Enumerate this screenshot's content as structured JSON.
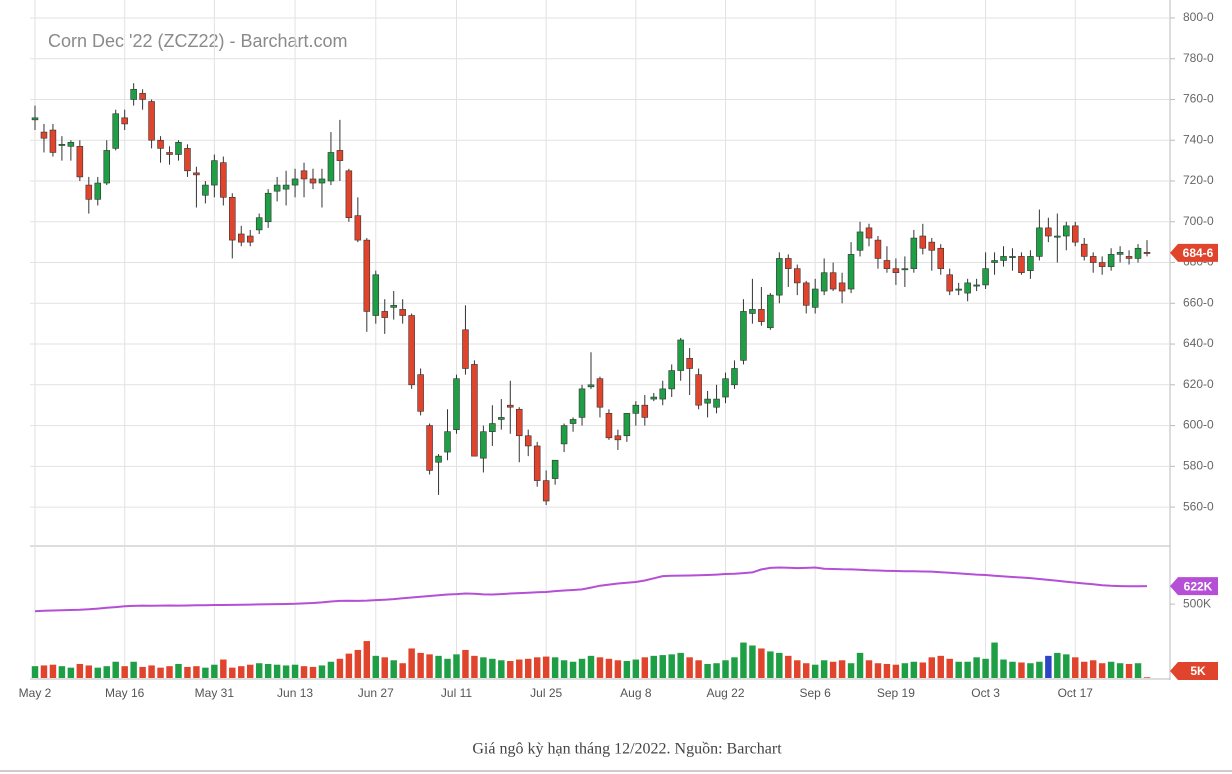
{
  "chart_data": {
    "type": "candlestick",
    "title": "Corn Dec '22 (ZCZ22) - Barchart.com",
    "up_color": "#1e9e45",
    "down_color": "#e0442c",
    "oi_color": "#b44fd6",
    "grid": true,
    "ylim": [
      541.4,
      803.9
    ],
    "yticks": [
      {
        "value": 560,
        "label": "560-0"
      },
      {
        "value": 580,
        "label": "580-0"
      },
      {
        "value": 600,
        "label": "600-0"
      },
      {
        "value": 620,
        "label": "620-0"
      },
      {
        "value": 640,
        "label": "640-0"
      },
      {
        "value": 660,
        "label": "660-0"
      },
      {
        "value": 680,
        "label": "680-0"
      },
      {
        "value": 700,
        "label": "700-0"
      },
      {
        "value": 720,
        "label": "720-0"
      },
      {
        "value": 740,
        "label": "740-0"
      },
      {
        "value": 760,
        "label": "760-0"
      },
      {
        "value": 780,
        "label": "780-0"
      },
      {
        "value": 800,
        "label": "800-0"
      }
    ],
    "xticks": [
      {
        "value": 0,
        "label": "May 2"
      },
      {
        "value": 10,
        "label": "May 16"
      },
      {
        "value": 20,
        "label": "May 31"
      },
      {
        "value": 29,
        "label": "Jun 13"
      },
      {
        "value": 38,
        "label": "Jun 27"
      },
      {
        "value": 47,
        "label": "Jul 11"
      },
      {
        "value": 57,
        "label": "Jul 25"
      },
      {
        "value": 67,
        "label": "Aug 8"
      },
      {
        "value": 77,
        "label": "Aug 22"
      },
      {
        "value": 87,
        "label": "Sep 6"
      },
      {
        "value": 96,
        "label": "Sep 19"
      },
      {
        "value": 106,
        "label": "Oct 3"
      },
      {
        "value": 116,
        "label": "Oct 17"
      }
    ],
    "open": [
      750,
      744,
      745,
      738,
      737,
      737,
      718,
      711,
      719,
      736,
      751,
      760,
      763,
      759,
      740,
      734,
      733,
      736,
      724,
      713,
      718,
      729,
      712,
      694,
      693,
      696,
      700,
      715,
      716,
      718,
      725,
      721,
      719,
      720,
      735,
      725,
      703,
      691,
      654,
      656,
      658,
      657,
      654,
      625,
      600,
      582,
      587,
      598,
      647,
      630,
      584,
      597,
      603,
      610,
      608,
      595,
      590,
      573,
      574,
      591,
      601,
      604,
      619,
      623,
      606,
      595,
      595,
      606,
      610,
      613,
      613,
      618,
      627,
      633,
      625,
      611,
      609,
      614,
      620,
      632,
      655,
      657,
      648,
      664,
      682,
      677,
      670,
      658,
      666,
      675,
      670,
      667,
      686,
      697,
      691,
      681,
      677,
      677,
      677,
      693,
      690,
      687,
      674,
      667,
      665,
      669,
      669,
      680,
      681,
      683,
      683,
      676,
      683,
      697,
      693,
      693,
      698,
      689,
      683,
      680,
      678,
      684,
      683,
      682,
      685
    ],
    "high": [
      757,
      748,
      748,
      742,
      740,
      740,
      722,
      722,
      740,
      755,
      755,
      768,
      765,
      760,
      742,
      737,
      740,
      738,
      727,
      720,
      733,
      732,
      714,
      698,
      696,
      704,
      716,
      722,
      725,
      726,
      729,
      726,
      726,
      744,
      750,
      726,
      712,
      692,
      676,
      662,
      666,
      662,
      655,
      628,
      601,
      586,
      608,
      625,
      659,
      632,
      600,
      610,
      613,
      622,
      609,
      598,
      592,
      578,
      582,
      601,
      604,
      620,
      636,
      624,
      608,
      598,
      606,
      612,
      615,
      616,
      622,
      630,
      643,
      638,
      628,
      617,
      620,
      626,
      632,
      662,
      672,
      668,
      665,
      685,
      684,
      679,
      671,
      672,
      682,
      680,
      675,
      690,
      700,
      699,
      693,
      688,
      682,
      683,
      696,
      699,
      692,
      689,
      677,
      670,
      672,
      672,
      685,
      685,
      688,
      687,
      685,
      686,
      706,
      702,
      704,
      700,
      700,
      692,
      685,
      683,
      687,
      688,
      686,
      689,
      691
    ],
    "low": [
      745,
      734,
      732,
      730,
      730,
      720,
      704,
      708,
      718,
      735,
      745,
      757,
      755,
      736,
      729,
      728,
      730,
      722,
      707,
      709,
      712,
      708,
      682,
      688,
      688,
      694,
      697,
      710,
      708,
      712,
      712,
      716,
      707,
      718,
      720,
      700,
      690,
      646,
      650,
      645,
      652,
      650,
      618,
      605,
      576,
      566,
      583,
      596,
      625,
      585,
      577,
      590,
      598,
      596,
      582,
      585,
      570,
      561,
      571,
      587,
      597,
      600,
      618,
      604,
      593,
      588,
      592,
      600,
      600,
      612,
      610,
      614,
      622,
      615,
      608,
      604,
      606,
      611,
      618,
      630,
      650,
      649,
      647,
      660,
      668,
      664,
      655,
      655,
      664,
      666,
      660,
      665,
      683,
      688,
      677,
      675,
      669,
      668,
      675,
      684,
      676,
      674,
      664,
      664,
      661,
      666,
      667,
      674,
      678,
      676,
      674,
      672,
      681,
      690,
      680,
      686,
      688,
      681,
      675,
      674,
      676,
      680,
      679,
      680,
      683
    ],
    "close": [
      751,
      741,
      734,
      738,
      739,
      722,
      711,
      719,
      735,
      753,
      748,
      765,
      760,
      740,
      736,
      733,
      739,
      725,
      723,
      718,
      730,
      712,
      691,
      690,
      690,
      702,
      714,
      718,
      718,
      721,
      721,
      719,
      721,
      734,
      730,
      702,
      691,
      656,
      674,
      653,
      659,
      654,
      620,
      607,
      578,
      585,
      597,
      623,
      628,
      585,
      597,
      601,
      604,
      609,
      595,
      590,
      573,
      563,
      583,
      600,
      603,
      618,
      620,
      609,
      594,
      593,
      606,
      610,
      604,
      614,
      618,
      627,
      642,
      628,
      610,
      613,
      613,
      623,
      628,
      656,
      657,
      651,
      664,
      682,
      677,
      670,
      659,
      667,
      675,
      667,
      666,
      684,
      695,
      692,
      682,
      677,
      675,
      677,
      692,
      687,
      686,
      677,
      666,
      667,
      670,
      669,
      677,
      681,
      683,
      683,
      675,
      683,
      697,
      693,
      693,
      698,
      690,
      683,
      680,
      678,
      684,
      685,
      682,
      687,
      684.75
    ],
    "price_tag": {
      "value": 684.75,
      "label": "684-6"
    },
    "volume_ylim": [
      0,
      880
    ],
    "volume_yticks": [
      {
        "value": 500,
        "label": "500K"
      }
    ],
    "volume": [
      80,
      85,
      90,
      80,
      70,
      95,
      85,
      70,
      80,
      110,
      80,
      110,
      75,
      85,
      70,
      80,
      95,
      75,
      80,
      70,
      90,
      125,
      70,
      80,
      90,
      100,
      95,
      90,
      85,
      90,
      80,
      75,
      85,
      110,
      130,
      165,
      190,
      250,
      150,
      140,
      120,
      100,
      200,
      170,
      160,
      150,
      130,
      160,
      190,
      150,
      140,
      130,
      120,
      115,
      125,
      130,
      140,
      145,
      140,
      120,
      110,
      130,
      150,
      140,
      130,
      120,
      115,
      125,
      140,
      150,
      155,
      160,
      170,
      140,
      120,
      95,
      100,
      120,
      140,
      240,
      220,
      200,
      180,
      170,
      150,
      120,
      100,
      90,
      120,
      110,
      120,
      100,
      170,
      120,
      100,
      95,
      90,
      100,
      110,
      105,
      140,
      150,
      130,
      110,
      110,
      140,
      130,
      240,
      125,
      110,
      105,
      100,
      110,
      150,
      170,
      160,
      140,
      110,
      120,
      100,
      110,
      100,
      95,
      100,
      5
    ],
    "volume_highlight": {
      "index": 113,
      "color": "#2b45c4"
    },
    "volume_tag": {
      "value": 5,
      "label": "5K"
    },
    "open_interest": [
      452,
      455,
      457,
      459,
      460,
      462,
      465,
      470,
      475,
      480,
      486,
      488,
      490,
      489,
      490,
      491,
      490,
      491,
      492,
      493,
      494,
      494,
      495,
      496,
      497,
      498,
      499,
      500,
      501,
      502,
      505,
      508,
      512,
      518,
      522,
      523,
      522,
      524,
      527,
      530,
      534,
      540,
      545,
      550,
      555,
      560,
      565,
      568,
      572,
      570,
      566,
      565,
      568,
      572,
      575,
      577,
      580,
      582,
      588,
      592,
      596,
      600,
      612,
      625,
      632,
      640,
      645,
      650,
      660,
      675,
      690,
      692,
      693,
      694,
      695,
      697,
      700,
      704,
      706,
      710,
      715,
      735,
      745,
      748,
      746,
      744,
      745,
      748,
      740,
      738,
      736,
      735,
      733,
      730,
      728,
      725,
      724,
      722,
      722,
      721,
      720,
      716,
      712,
      708,
      704,
      700,
      697,
      692,
      688,
      684,
      680,
      676,
      670,
      664,
      658,
      652,
      646,
      640,
      634,
      628,
      624,
      622,
      621,
      621,
      622
    ],
    "oi_tag": {
      "value": 622,
      "label": "622K"
    }
  },
  "caption": "Giá ngô kỳ hạn tháng 12/2022. Nguồn: Barchart"
}
